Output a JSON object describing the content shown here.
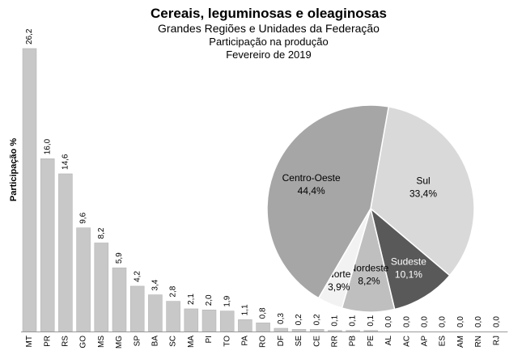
{
  "chart_data": [
    {
      "type": "bar",
      "title": "Cereais, leguminosas e oleaginosas",
      "subtitle": "Grandes Regiões e Unidades da Federação",
      "subtitle2": "Participação na produção",
      "period": "Fevereiro de 2019",
      "ylabel": "Participação %",
      "xlabel": "",
      "ylim": [
        0,
        26.2
      ],
      "grid": false,
      "bar_color": "#c8c8c8",
      "categories": [
        "MT",
        "PR",
        "RS",
        "GO",
        "MS",
        "MG",
        "SP",
        "BA",
        "SC",
        "MA",
        "PI",
        "TO",
        "PA",
        "RO",
        "DF",
        "SE",
        "CE",
        "RR",
        "PB",
        "PE",
        "AL",
        "AC",
        "AP",
        "ES",
        "AM",
        "RN",
        "RJ"
      ],
      "values": [
        26.2,
        16.0,
        14.6,
        9.6,
        8.2,
        5.9,
        4.2,
        3.4,
        2.8,
        2.1,
        2.0,
        1.9,
        1.1,
        0.8,
        0.3,
        0.2,
        0.2,
        0.1,
        0.1,
        0.1,
        0.0,
        0.0,
        0.0,
        0.0,
        0.0,
        0.0,
        0.0
      ],
      "value_labels": [
        "26,2",
        "16,0",
        "14,6",
        "9,6",
        "8,2",
        "5,9",
        "4,2",
        "3,4",
        "2,8",
        "2,1",
        "2,0",
        "1,9",
        "1,1",
        "0,8",
        "0,3",
        "0,2",
        "0,2",
        "0,1",
        "0,1",
        "0,1",
        "0,0",
        "0,0",
        "0,0",
        "0,0",
        "0,0",
        "0,0",
        "0,0"
      ]
    },
    {
      "type": "pie",
      "slices": [
        {
          "label": "Sul",
          "value": 33.4,
          "value_label": "33,4%",
          "color": "#d9d9d9",
          "text_color": "#000000"
        },
        {
          "label": "Sudeste",
          "value": 10.1,
          "value_label": "10,1%",
          "color": "#595959",
          "text_color": "#ffffff"
        },
        {
          "label": "Nordeste",
          "value": 8.2,
          "value_label": "8,2%",
          "color": "#bfbfbf",
          "text_color": "#000000"
        },
        {
          "label": "Norte",
          "value": 3.9,
          "value_label": "3,9%",
          "color": "#f2f2f2",
          "text_color": "#000000"
        },
        {
          "label": "Centro-Oeste",
          "value": 44.4,
          "value_label": "44,4%",
          "color": "#a6a6a6",
          "text_color": "#000000"
        }
      ]
    }
  ]
}
